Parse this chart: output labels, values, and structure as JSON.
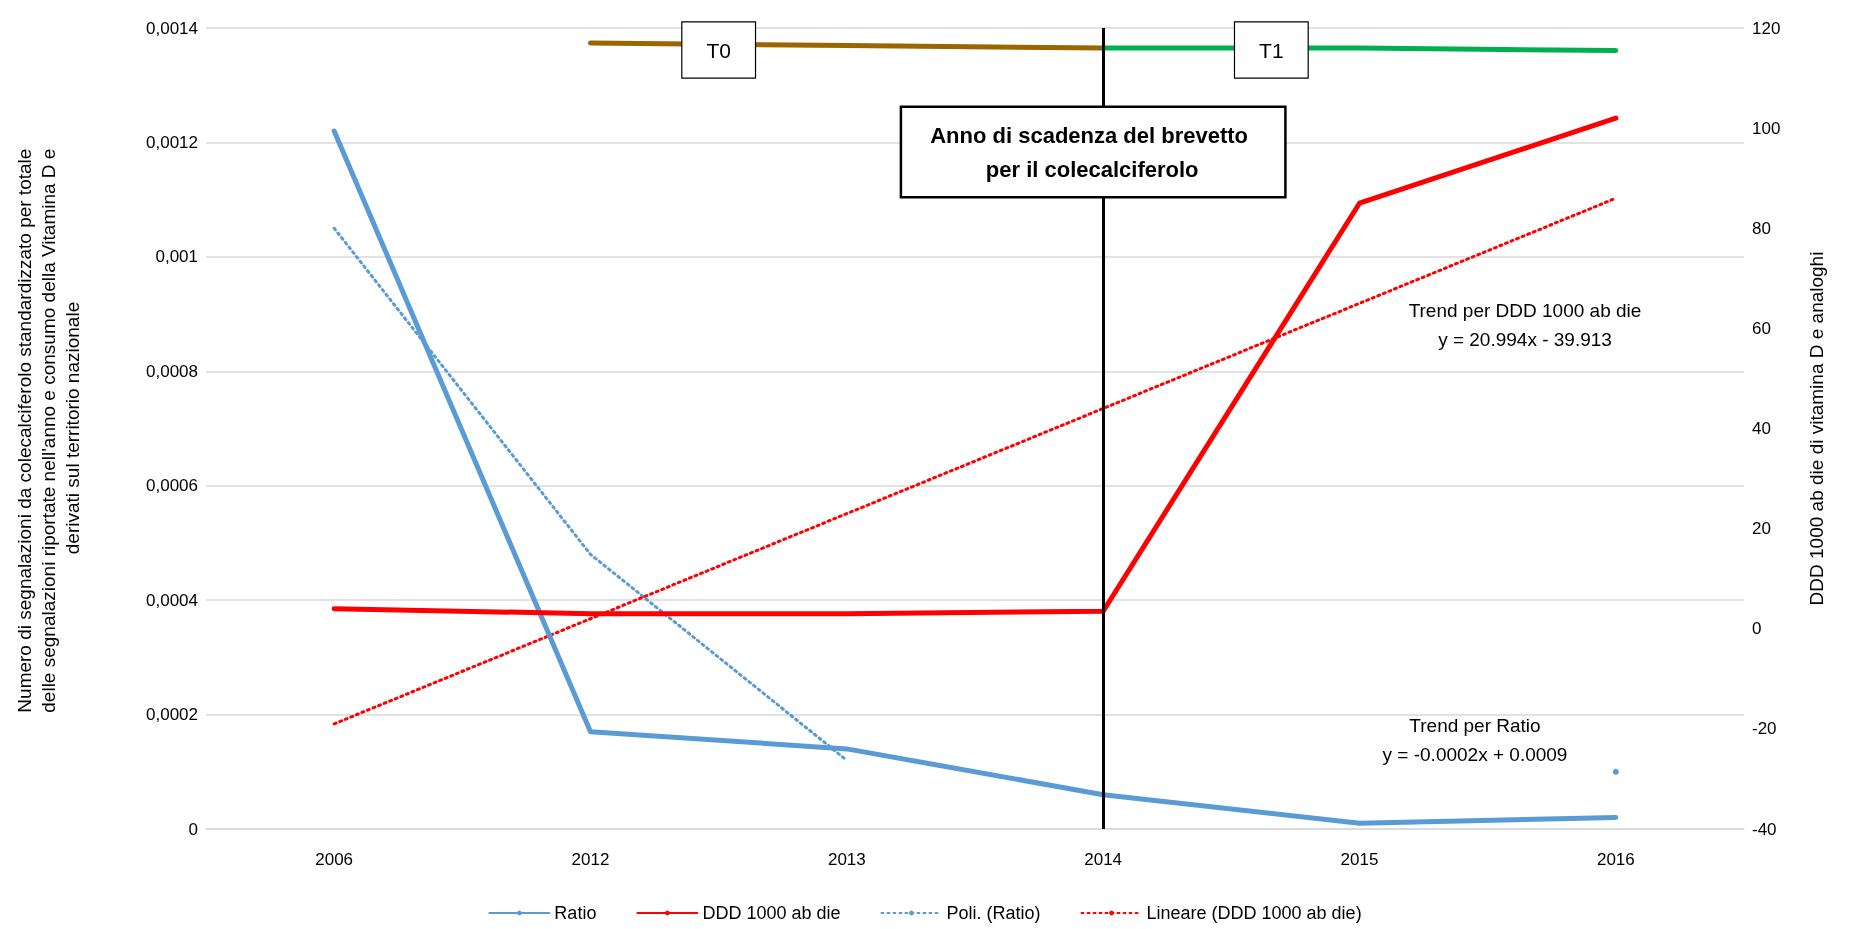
{
  "chart_data": {
    "type": "line",
    "ylabel": "Numero di segnalazioni da colecalciferolo standardizzato per totale delle segnalazioni riportate nell'anno e consumo della Vitamina D e derivati sul territorio nazionale",
    "y2label": "DDD 1000 ab die di vitamina D e analoghi",
    "categories": [
      "2006",
      "2012",
      "2013",
      "2014",
      "2015",
      "2016"
    ],
    "series": [
      {
        "name": "Ratio",
        "color": "#5b9bd5",
        "values": [
          0.00122,
          0.00017,
          0.00014,
          6e-05,
          1e-05,
          2e-05
        ]
      },
      {
        "name": "DDD 1000 ab die",
        "color": "#ff0000",
        "axis": "y2",
        "values": [
          4,
          3,
          3,
          3.5,
          85,
          102
        ]
      },
      {
        "name": "Poli. (Ratio)",
        "color": "#5b9bd5",
        "line_style": "dotted",
        "values": [
          0.00105,
          0.00048,
          0.00012,
          null,
          null,
          0.0001
        ]
      },
      {
        "name": "Lineare (DDD 1000 ab die)",
        "color": "#ff0000",
        "axis": "y2",
        "line_style": "dotted",
        "values": [
          -19,
          2,
          23,
          44,
          65,
          86
        ]
      },
      {
        "color": "#996600",
        "axis": "y2",
        "values": [
          null,
          117,
          116.5,
          116,
          null,
          null
        ]
      },
      {
        "color": "#00b050",
        "axis": "y2",
        "values": [
          null,
          null,
          null,
          116,
          116,
          115.5
        ]
      }
    ],
    "ylim": [
      0,
      0.0014
    ],
    "yticks": [
      {
        "value": 0,
        "label": "0"
      },
      {
        "value": 0.0002,
        "label": "0,0002"
      },
      {
        "value": 0.0004,
        "label": "0,0004"
      },
      {
        "value": 0.0006,
        "label": "0,0006"
      },
      {
        "value": 0.0008,
        "label": "0,0008"
      },
      {
        "value": 0.001,
        "label": "0,001"
      },
      {
        "value": 0.0012,
        "label": "0,0012"
      },
      {
        "value": 0.0014,
        "label": "0,0014"
      }
    ],
    "y2lim": [
      -40,
      120
    ],
    "y2ticks": [
      -40,
      -20,
      0,
      20,
      40,
      60,
      80,
      100,
      120
    ],
    "ref_lines": [
      {
        "axis": "x",
        "value": "2014",
        "label": "Anno di scadenza del brevetto per il colecalciferolo",
        "color": "#000000"
      }
    ],
    "annotations": [
      "T0",
      "T1",
      "Trend per DDD 1000 ab die\ny = 20.994x - 39.913",
      "Trend per Ratio\ny = -0.0002x + 0.0009"
    ],
    "grid": "y",
    "legend": "bottom",
    "marker": "none"
  }
}
